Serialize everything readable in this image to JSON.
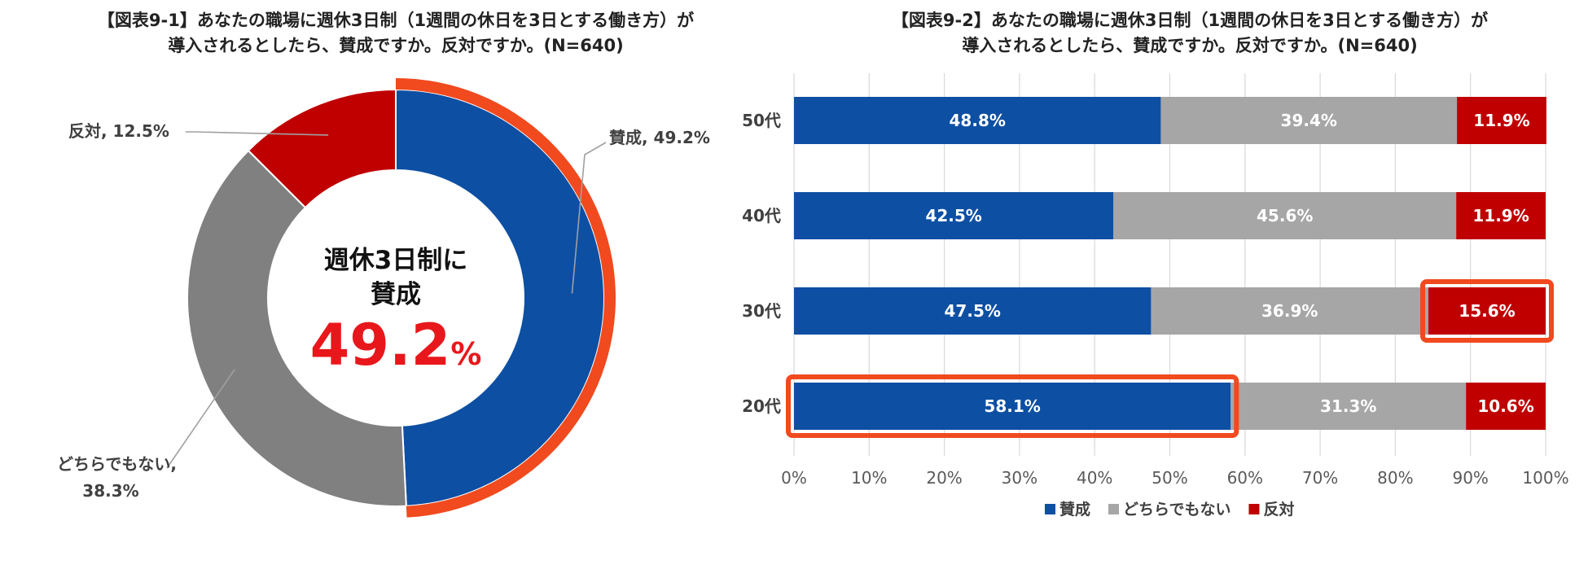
{
  "chart_data": [
    {
      "type": "pie",
      "title": "【図表9-1】あなたの職場に週休3日制（1週間の休日を3日とする働き方）が導入されるとしたら、賛成ですか。反対ですか。(N=640)",
      "title_lines": [
        "【図表9-1】あなたの職場に週休3日制（1週間の休日を3日とする働き方）が",
        "導入されるとしたら、賛成ですか。反対ですか。(N=640)"
      ],
      "slices": [
        {
          "name": "賛成",
          "value": 49.2,
          "color": "#0d4fa3",
          "label": "賛成, 49.2%"
        },
        {
          "name": "どちらでもない",
          "value": 38.3,
          "color": "#808080",
          "label_lines": [
            "どちらでもない,",
            "38.3%"
          ]
        },
        {
          "name": "反対",
          "value": 12.5,
          "color": "#c00000",
          "label": "反対, 12.5%"
        }
      ],
      "highlight_color": "#f04a1e",
      "center": {
        "line1": "週休3日制に",
        "line2": "賛成",
        "value": "49.2",
        "unit": "%",
        "value_color": "#e8171b"
      }
    },
    {
      "type": "bar",
      "orientation": "horizontal",
      "stacked": true,
      "title": "【図表9-2】あなたの職場に週休3日制（1週間の休日を3日とする働き方）が導入されるとしたら、賛成ですか。反対ですか。(N=640)",
      "title_lines": [
        "【図表9-2】あなたの職場に週休3日制（1週間の休日を3日とする働き方）が",
        "導入されるとしたら、賛成ですか。反対ですか。(N=640)"
      ],
      "categories": [
        "50代",
        "40代",
        "30代",
        "20代"
      ],
      "series": [
        {
          "name": "賛成",
          "color": "#0d4fa3",
          "values": [
            48.8,
            42.5,
            47.5,
            58.1
          ],
          "labels": [
            "48.8%",
            "42.5%",
            "47.5%",
            "58.1%"
          ]
        },
        {
          "name": "どちらでもない",
          "color": "#a6a6a6",
          "values": [
            39.4,
            45.6,
            36.9,
            31.3
          ],
          "labels": [
            "39.4%",
            "45.6%",
            "36.9%",
            "31.3%"
          ]
        },
        {
          "name": "反対",
          "color": "#c00000",
          "values": [
            11.9,
            11.9,
            15.6,
            10.6
          ],
          "labels": [
            "11.9%",
            "11.9%",
            "15.6%",
            "10.6%"
          ]
        }
      ],
      "xlim": [
        0,
        100
      ],
      "x_ticks": [
        "0%",
        "10%",
        "20%",
        "30%",
        "40%",
        "50%",
        "60%",
        "70%",
        "80%",
        "90%",
        "100%"
      ],
      "grid": true,
      "legend_position": "bottom",
      "highlights": [
        {
          "category": "30代",
          "series": "反対"
        },
        {
          "category": "20代",
          "series": "賛成"
        }
      ],
      "highlight_color": "#f04a1e"
    }
  ]
}
